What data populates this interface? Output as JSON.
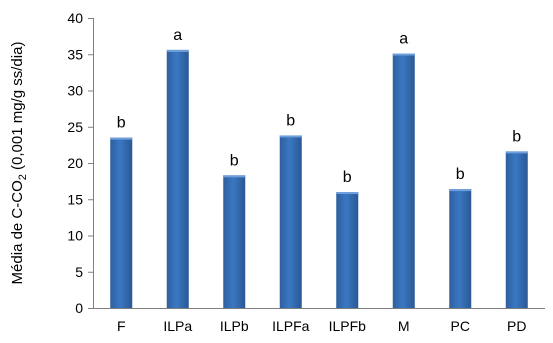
{
  "chart_data": {
    "type": "bar",
    "ylabel": {
      "prefix": "Média de C-CO",
      "subscript": "2",
      "suffix": " (0,001 mg/g ss/dia)"
    },
    "ylim": [
      0,
      40
    ],
    "yticks": [
      0,
      5,
      10,
      15,
      20,
      25,
      30,
      35,
      40
    ],
    "grid": false,
    "bar_color": "#3A78C3",
    "categories": [
      "F",
      "ILPa",
      "ILPb",
      "ILPFa",
      "ILPFb",
      "M",
      "PC",
      "PD"
    ],
    "values": [
      23.5,
      35.6,
      18.3,
      23.8,
      16.0,
      35.1,
      16.4,
      21.6
    ],
    "annotations": [
      "b",
      "a",
      "b",
      "b",
      "b",
      "a",
      "b",
      "b"
    ]
  }
}
